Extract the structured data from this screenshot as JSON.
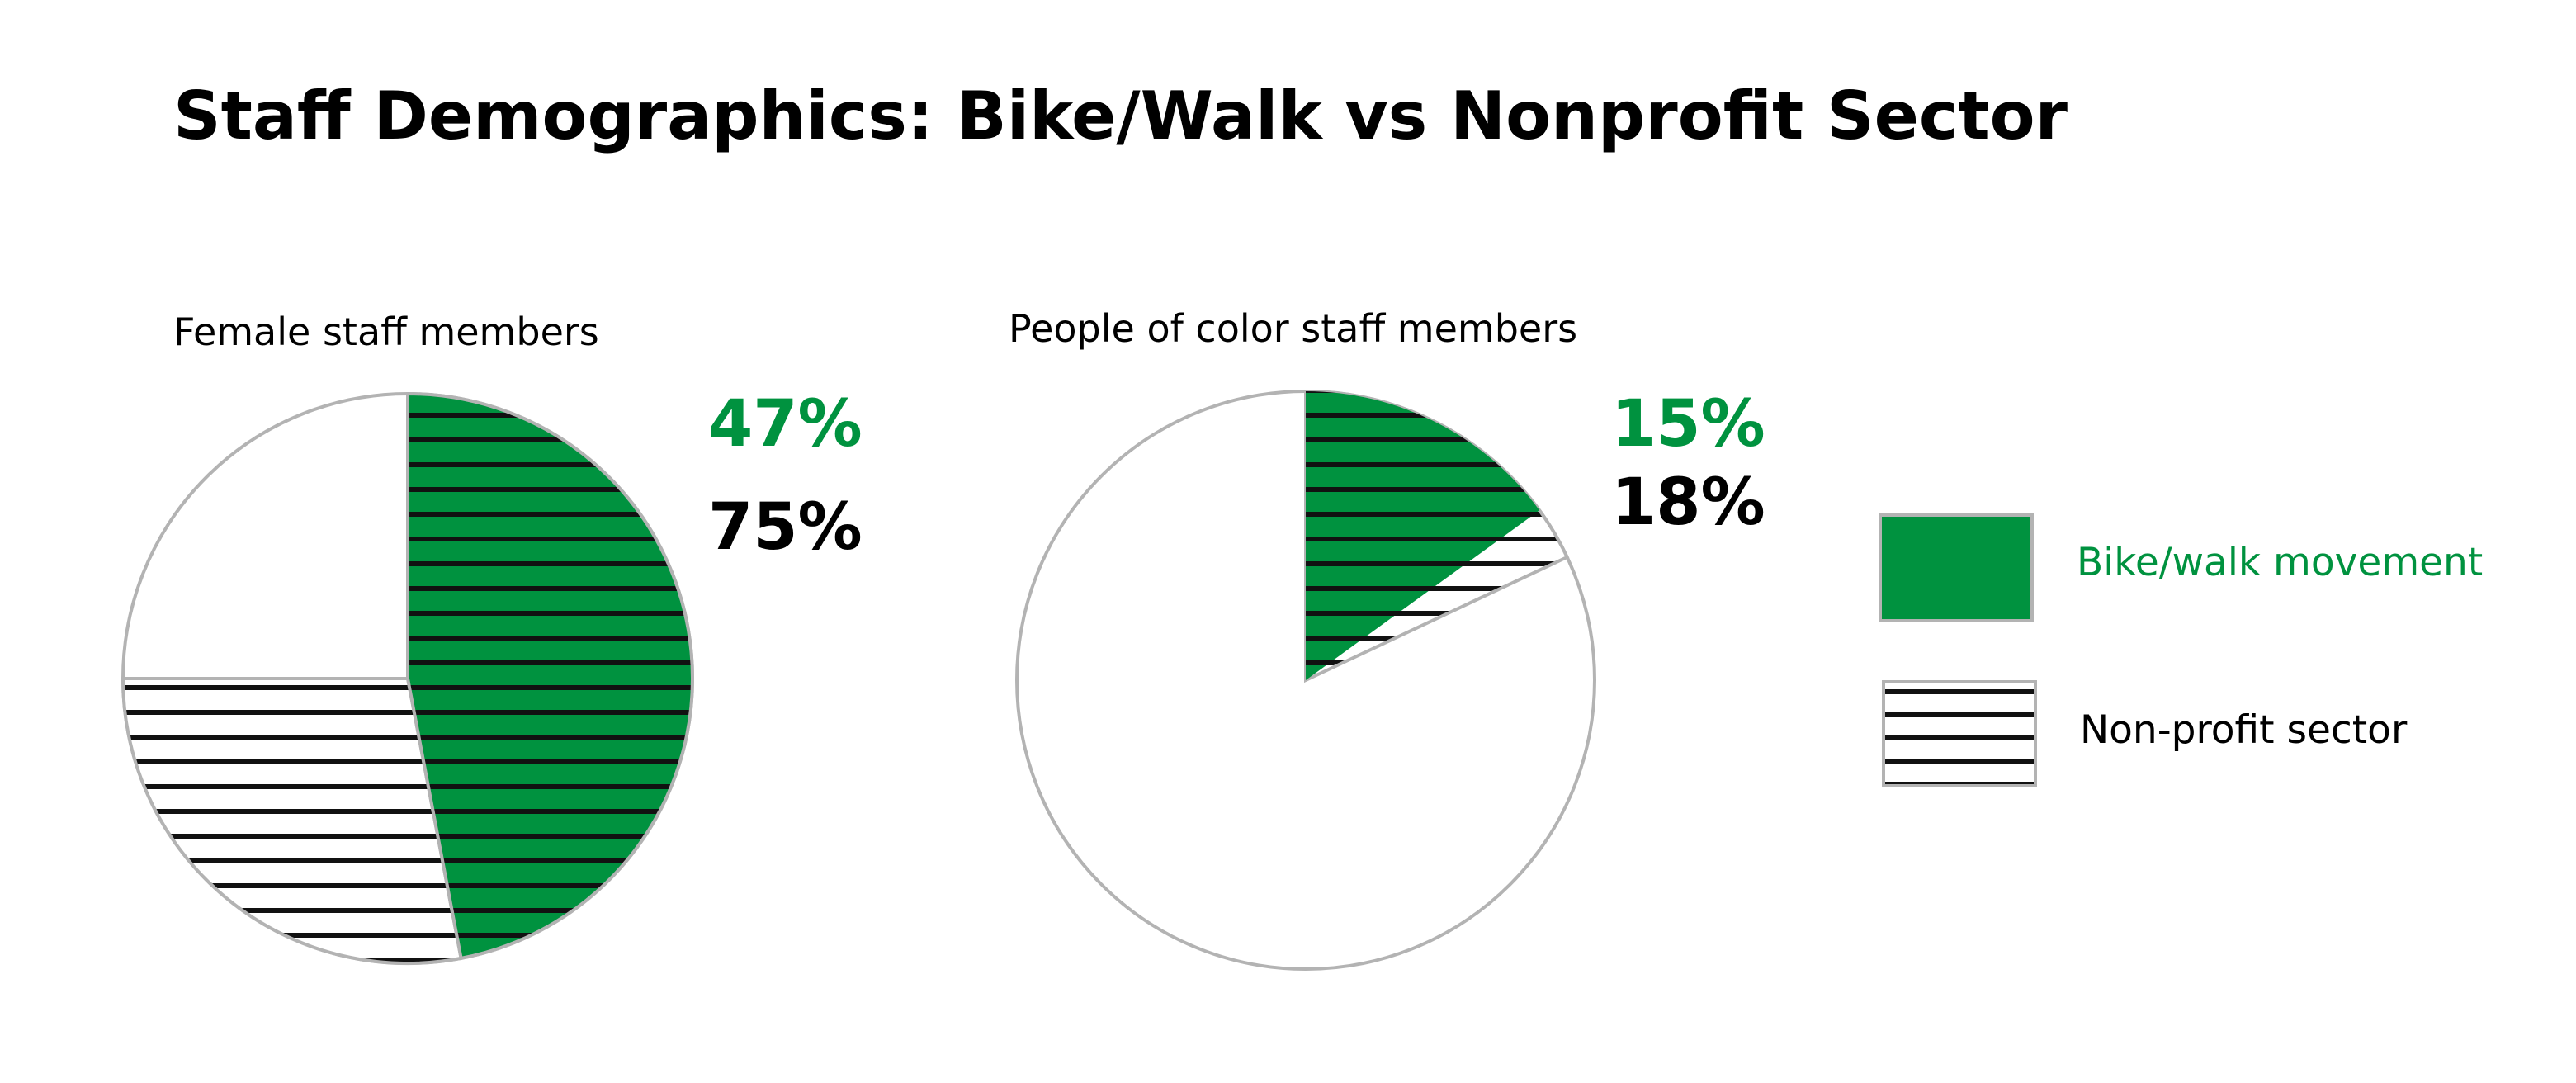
{
  "title": "Staff Demographics: Bike/Walk vs Nonprofit Sector",
  "colors": {
    "bike_walk": "#00923f",
    "nonprofit_stripe": "#111111",
    "outline": "#b3b3b3",
    "background": "#ffffff"
  },
  "legend": {
    "placement": "right",
    "items": [
      {
        "key": "bike_walk",
        "label": "Bike/walk movement",
        "fill": "solid",
        "color": "#00923f",
        "text_color": "#00923f"
      },
      {
        "key": "nonprofit",
        "label": "Non-profit sector",
        "fill": "horizontal-stripes",
        "color": "#111111",
        "text_color": "#000000"
      }
    ]
  },
  "chart_data": [
    {
      "type": "pie",
      "title": "Female staff members",
      "series": [
        {
          "name": "Bike/walk movement",
          "value_percent": 47,
          "label": "47%",
          "fill": "solid-with-stripes",
          "color": "#00923f"
        },
        {
          "name": "Non-profit sector",
          "value_percent": 75,
          "label": "75%",
          "fill": "horizontal-stripes",
          "color": "#111111"
        }
      ]
    },
    {
      "type": "pie",
      "title": "People of color staff members",
      "series": [
        {
          "name": "Bike/walk movement",
          "value_percent": 15,
          "label": "15%",
          "fill": "solid-with-stripes",
          "color": "#00923f"
        },
        {
          "name": "Non-profit sector",
          "value_percent": 18,
          "label": "18%",
          "fill": "horizontal-stripes",
          "color": "#111111"
        }
      ]
    }
  ]
}
